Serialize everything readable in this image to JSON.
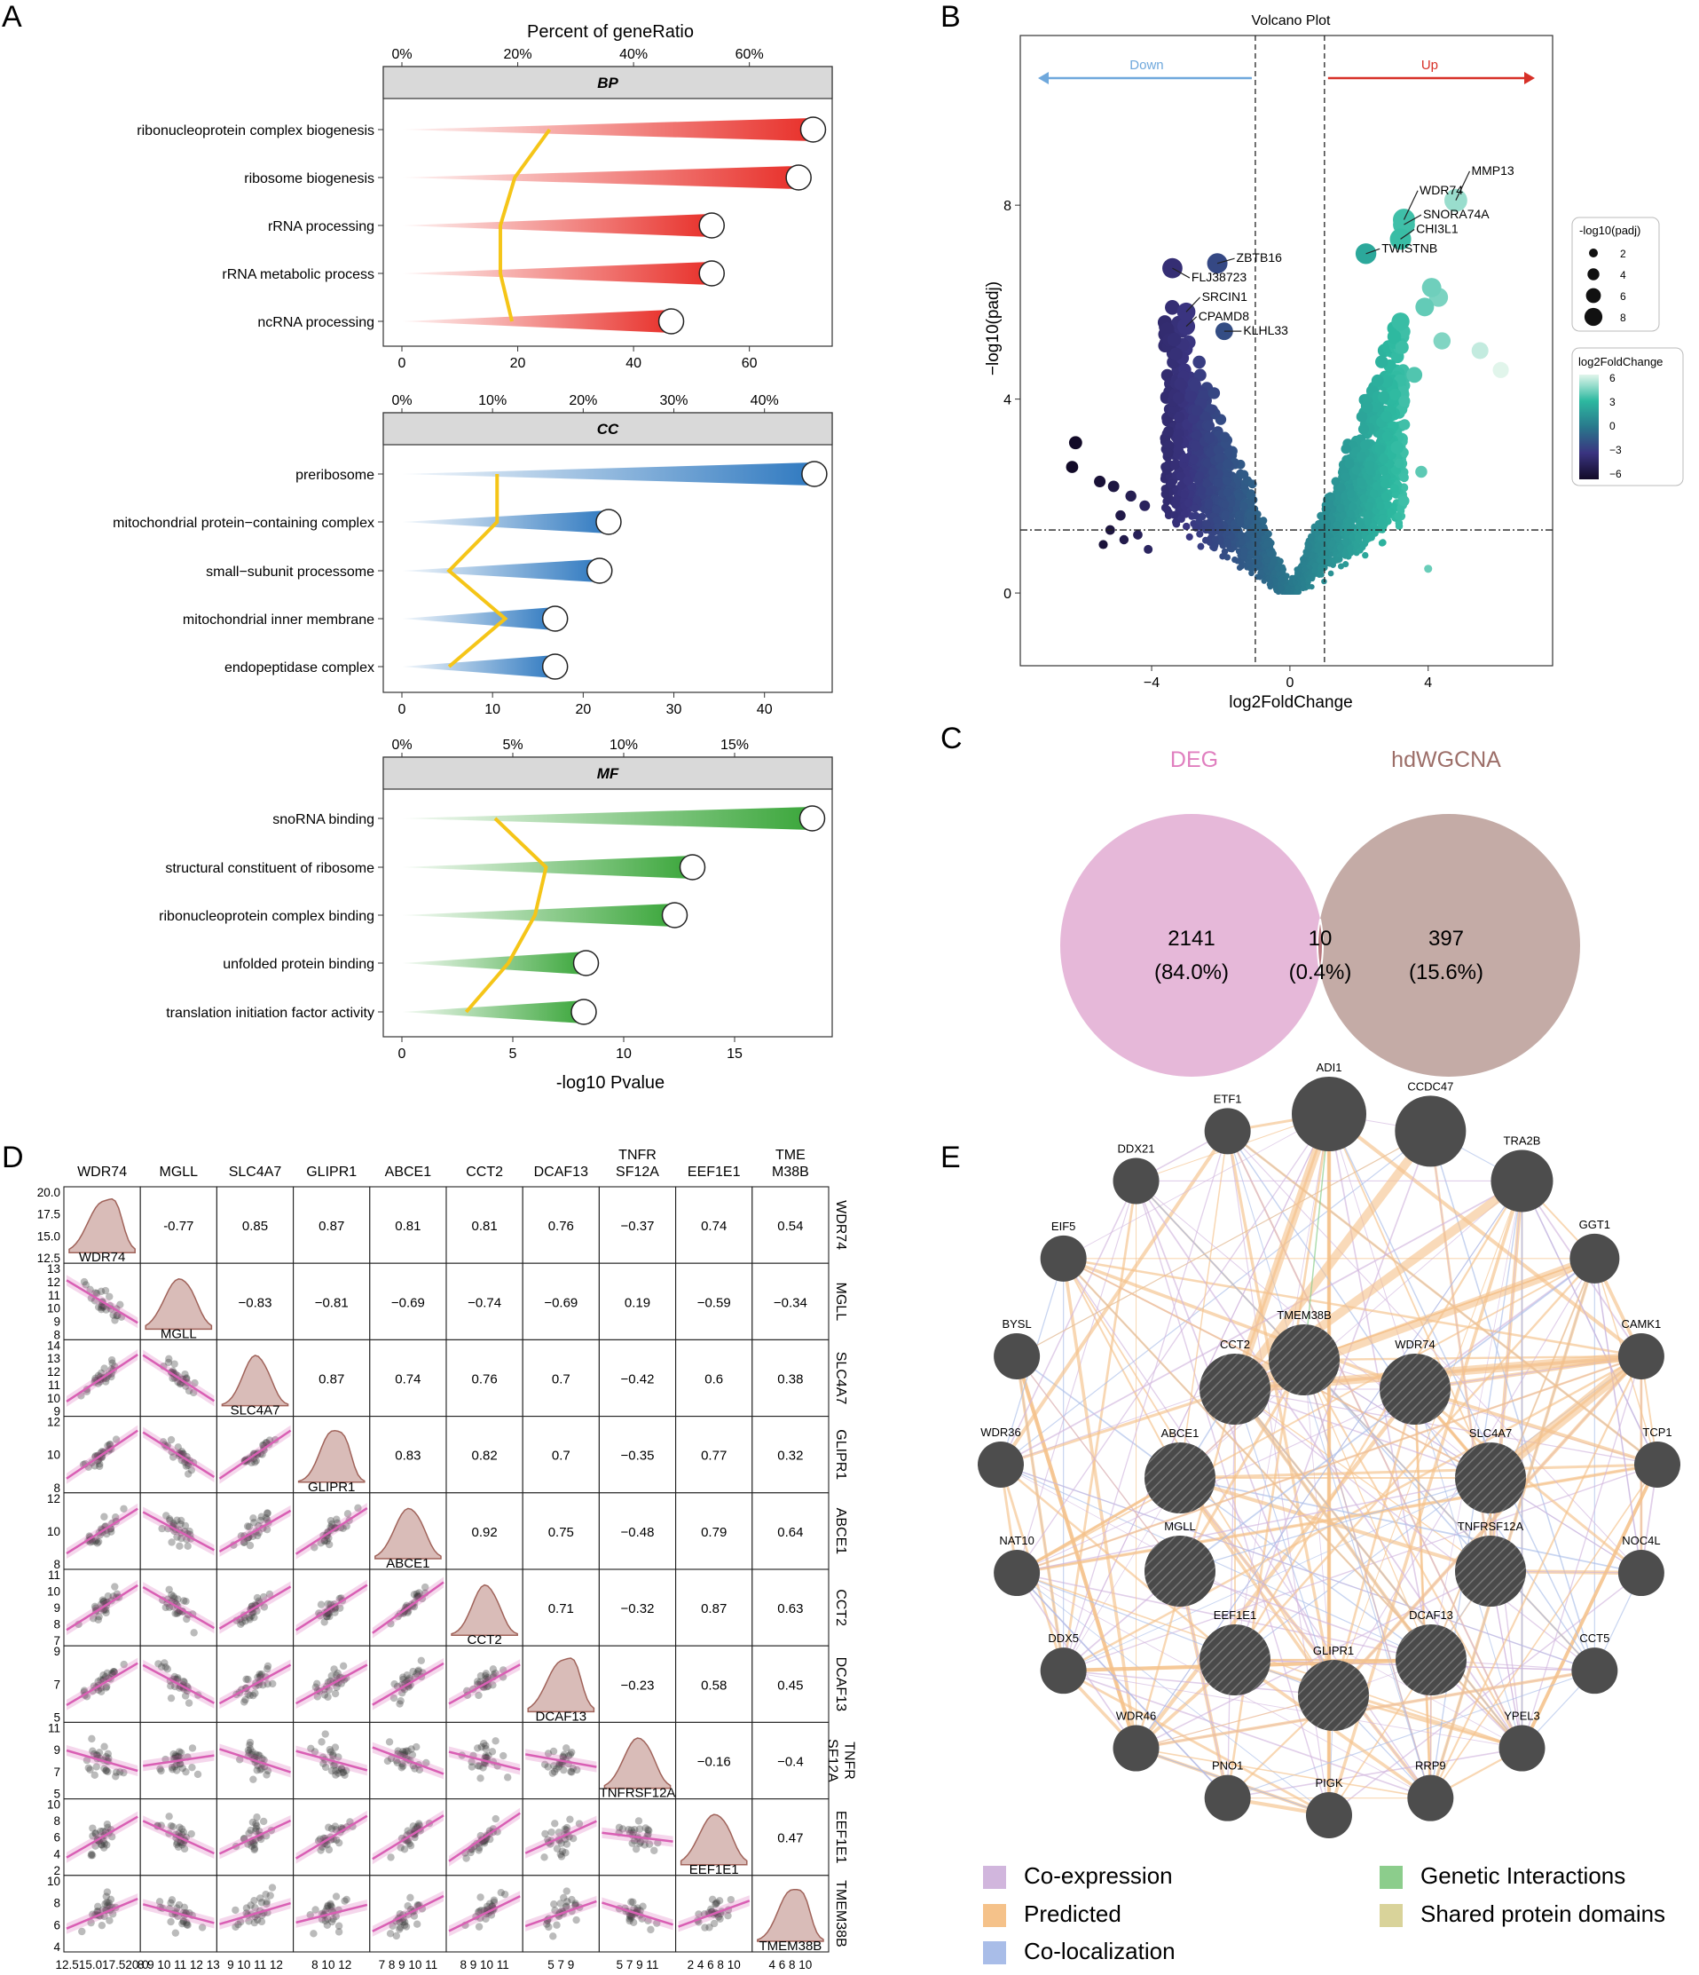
{
  "panel_letters": [
    "A",
    "B",
    "C",
    "D",
    "E"
  ],
  "chart_data": [
    {
      "id": "A",
      "type": "bar",
      "title": "Percent of geneRatio",
      "xlabel": "-log10 Pvalue",
      "line_color": "#f5c518",
      "panels": [
        {
          "name": "BP",
          "color": "#e8302a",
          "xlim": [
            0,
            72
          ],
          "bottom_ticks": [
            0,
            20,
            40,
            60
          ],
          "top_ticks": [
            "0%",
            "20%",
            "40%",
            "60%"
          ],
          "top_tick_positions": [
            0,
            20,
            40,
            60
          ],
          "categories": [
            "ribonucleoprotein complex biogenesis",
            "ribosome biogenesis",
            "rRNA processing",
            "rRNA metabolic process",
            "ncRNA processing"
          ],
          "pvalue": [
            71,
            68.5,
            53.5,
            53.5,
            46.5
          ],
          "gene_ratio_scaled": [
            25.5,
            19.5,
            17,
            17,
            19
          ]
        },
        {
          "name": "CC",
          "color": "#2f79c0",
          "xlim": [
            0,
            46
          ],
          "bottom_ticks": [
            0,
            10,
            20,
            30,
            40
          ],
          "top_ticks": [
            "0%",
            "10%",
            "20%",
            "30%",
            "40%"
          ],
          "top_tick_positions": [
            0,
            10,
            20,
            30,
            40
          ],
          "categories": [
            "preribosome",
            "mitochondrial protein−containing complex",
            "small−subunit processome",
            "mitochondrial inner membrane",
            "endopeptidase complex"
          ],
          "pvalue": [
            45.5,
            22.8,
            21.8,
            16.9,
            16.9
          ],
          "gene_ratio_scaled": [
            10.5,
            10.5,
            5.2,
            11.4,
            5.2
          ]
        },
        {
          "name": "MF",
          "color": "#3aa63a",
          "xlim": [
            0,
            18.8
          ],
          "bottom_ticks": [
            0,
            5,
            10,
            15
          ],
          "top_ticks": [
            "0%",
            "5%",
            "10%",
            "15%"
          ],
          "top_tick_positions": [
            0,
            5,
            10,
            15
          ],
          "categories": [
            "snoRNA binding",
            "structural constituent of ribosome",
            "ribonucleoprotein complex binding",
            "unfolded protein binding",
            "translation initiation factor activity"
          ],
          "pvalue": [
            18.5,
            13.1,
            12.3,
            8.3,
            8.2
          ],
          "gene_ratio_scaled": [
            4.2,
            6.5,
            6,
            4.8,
            2.9
          ]
        }
      ]
    },
    {
      "id": "B",
      "type": "scatter",
      "title": "Volcano Plot",
      "xlabel": "log2FoldChange",
      "ylabel": "−log10(padj)",
      "xlim": [
        -7.8,
        7.6
      ],
      "ylim": [
        -1.5,
        11.5
      ],
      "x_ticks": [
        -4,
        0,
        4
      ],
      "x_tick_labels": [
        "−4",
        "0",
        "4"
      ],
      "y_ticks": [
        0,
        4,
        8
      ],
      "fc_threshold": [
        -1,
        1
      ],
      "p_threshold": 1.3,
      "down_label": "Down",
      "up_label": "Up",
      "down_color": "#6fa8dc",
      "up_color": "#d73027",
      "size_legend_title": "-log10(padj)",
      "size_legend_values": [
        "2",
        "4",
        "6",
        "8"
      ],
      "color_legend_title": "log2FoldChange",
      "color_legend_ticks": [
        "6",
        "3",
        "0",
        "−3",
        "−6"
      ],
      "labeled_genes": [
        {
          "name": "MMP13",
          "x": 4.8,
          "y": 8.1,
          "lx": 5.2,
          "ly": 8.7
        },
        {
          "name": "WDR74",
          "x": 3.3,
          "y": 7.7,
          "lx": 3.7,
          "ly": 8.3
        },
        {
          "name": "SNORA74A",
          "x": 3.3,
          "y": 7.6,
          "lx": 3.8,
          "ly": 7.8
        },
        {
          "name": "CHI3L1",
          "x": 3.2,
          "y": 7.3,
          "lx": 3.6,
          "ly": 7.5
        },
        {
          "name": "TWISTNB",
          "x": 2.2,
          "y": 7.0,
          "lx": 2.6,
          "ly": 7.1
        },
        {
          "name": "ZBTB16",
          "x": -2.1,
          "y": 6.8,
          "lx": -1.6,
          "ly": 6.9
        },
        {
          "name": "FLJ38723",
          "x": -3.4,
          "y": 6.7,
          "lx": -2.9,
          "ly": 6.5
        },
        {
          "name": "SRCIN1",
          "x": -3.0,
          "y": 5.8,
          "lx": -2.6,
          "ly": 6.1
        },
        {
          "name": "CPAMD8",
          "x": -3.0,
          "y": 5.5,
          "lx": -2.7,
          "ly": 5.7
        },
        {
          "name": "KLHL33",
          "x": -1.9,
          "y": 5.4,
          "lx": -1.4,
          "ly": 5.4
        }
      ]
    },
    {
      "id": "C",
      "type": "venn",
      "sets": [
        {
          "name": "DEG",
          "count": "2141",
          "pct": "(84.0%)",
          "color": "#e6b8d9",
          "label_color": "#e07fbf"
        },
        {
          "name": "hdWGCNA",
          "count": "397",
          "pct": "(15.6%)",
          "color": "#c4aba6",
          "label_color": "#9c6e68"
        }
      ],
      "intersection": {
        "count": "10",
        "pct": "(0.4%)",
        "color": "#b9787f"
      }
    },
    {
      "id": "D",
      "type": "scatter-matrix",
      "genes": [
        "WDR74",
        "MGLL",
        "SLC4A7",
        "GLIPR1",
        "ABCE1",
        "CCT2",
        "DCAF13",
        "TNFRSF12A",
        "EEF1E1",
        "TMEM38B"
      ],
      "header_labels": [
        "WDR74",
        "MGLL",
        "SLC4A7",
        "GLIPR1",
        "ABCE1",
        "CCT2",
        "DCAF13",
        "TNFR\nSF12A",
        "EEF1E1",
        "TME\nM38B"
      ],
      "side_labels": [
        "WDR74",
        "MGLL",
        "SLC4A7",
        "GLIPR1",
        "ABCE1",
        "CCT2",
        "DCAF13",
        "TNFR\nSF12A",
        "EEF1E1",
        "TMEM38B"
      ],
      "correlations": [
        [
          "-0.77",
          "0.85",
          "0.87",
          "0.81",
          "0.81",
          "0.76",
          "−0.37",
          "0.74",
          "0.54"
        ],
        [
          "−0.83",
          "−0.81",
          "−0.69",
          "−0.74",
          "−0.69",
          "0.19",
          "−0.59",
          "−0.34"
        ],
        [
          "0.87",
          "0.74",
          "0.76",
          "0.7",
          "−0.42",
          "0.6",
          "0.38"
        ],
        [
          "0.83",
          "0.82",
          "0.7",
          "−0.35",
          "0.77",
          "0.32"
        ],
        [
          "0.92",
          "0.75",
          "−0.48",
          "0.79",
          "0.64"
        ],
        [
          "0.71",
          "−0.32",
          "0.87",
          "0.63"
        ],
        [
          "−0.23",
          "0.58",
          "0.45"
        ],
        [
          "−0.16",
          "−0.4"
        ],
        [
          "0.47"
        ]
      ],
      "y_tick_labels": [
        [
          "20.0",
          "17.5",
          "15.0",
          "12.5"
        ],
        [
          "13",
          "12",
          "11",
          "10",
          "9",
          "8"
        ],
        [
          "14",
          "13",
          "12",
          "11",
          "10",
          "9"
        ],
        [
          "12",
          "10",
          "8"
        ],
        [
          "12",
          "10",
          "8"
        ],
        [
          "11",
          "10",
          "9",
          "8",
          "7"
        ],
        [
          "9",
          "7",
          "5"
        ],
        [
          "11",
          "9",
          "7",
          "5"
        ],
        [
          "10",
          "8",
          "6",
          "4",
          "2"
        ],
        [
          "10",
          "8",
          "6",
          "4"
        ]
      ],
      "x_tick_labels": [
        "12.515.017.520.0",
        "8 9 10 11 12 13",
        "9 10 11 12",
        "8 10 12",
        "7 8 9 10 11",
        "8 9 10 11",
        "5 7 9",
        "5 7 9 11",
        "2 4 6 8 10",
        "4 6 8 10"
      ],
      "fit_color": "#d95fb4",
      "density_fill": "#d9bcb8",
      "density_stroke": "#a0635a"
    },
    {
      "id": "E",
      "type": "network",
      "outer_nodes": [
        "ADI1",
        "CCDC47",
        "TRA2B",
        "GGT1",
        "CAMK1",
        "TCP1",
        "NOC4L",
        "CCT5",
        "YPEL3",
        "RRP9",
        "PIGK",
        "PNO1",
        "WDR46",
        "DDX5",
        "NAT10",
        "WDR36",
        "BYSL",
        "EIF5",
        "DDX21",
        "ETF1"
      ],
      "hub_nodes": [
        "TMEM38B",
        "CCT2",
        "WDR74",
        "ABCE1",
        "SLC4A7",
        "MGLL",
        "TNFRSF12A",
        "EEF1E1",
        "DCAF13",
        "GLIPR1"
      ],
      "legend": [
        {
          "label": "Co-expression",
          "color": "#d1b6dd"
        },
        {
          "label": "Predicted",
          "color": "#f5c28a"
        },
        {
          "label": "Co-localization",
          "color": "#a9bde8"
        },
        {
          "label": "Genetic Interactions",
          "color": "#8ccd8c"
        },
        {
          "label": "Shared protein domains",
          "color": "#d9d39a"
        }
      ]
    }
  ]
}
